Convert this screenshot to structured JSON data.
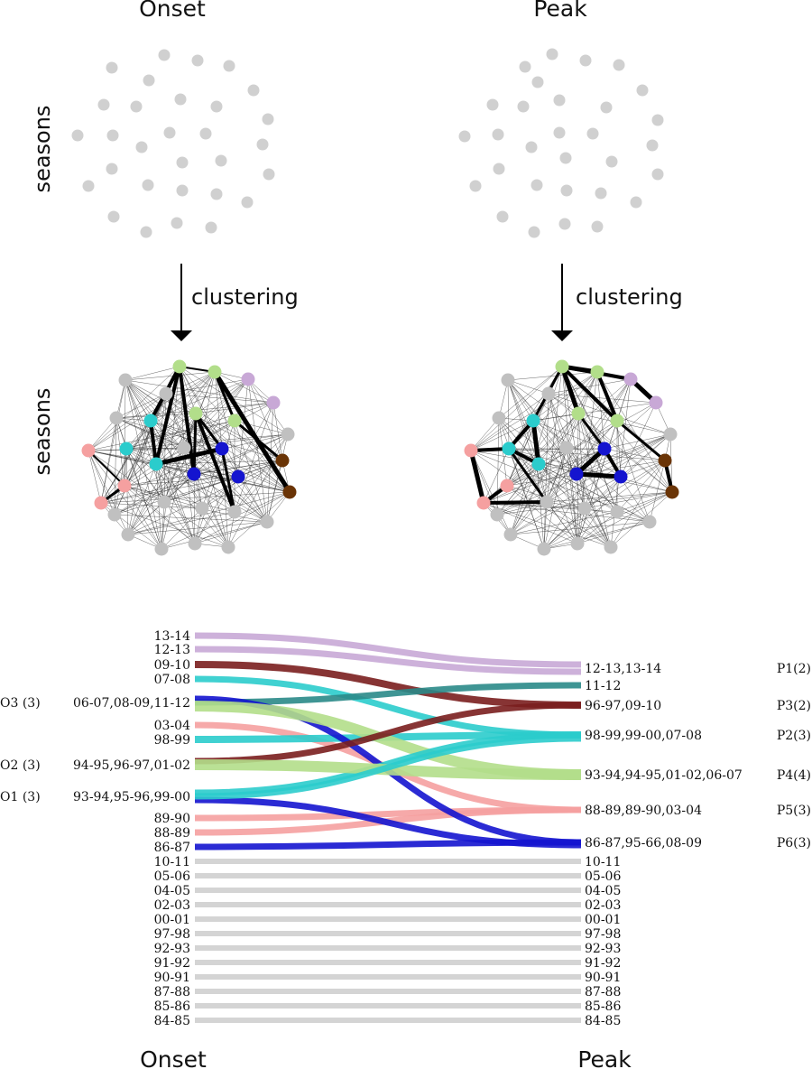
{
  "headers": {
    "onset": "Onset",
    "peak": "Peak"
  },
  "side_label": "seasons",
  "arrow_label": "clustering",
  "bottom": {
    "onset": "Onset",
    "peak": "Peak"
  },
  "colors": {
    "grey": "#cfcfcf",
    "green": "#b2de8a",
    "cyan": "#2bcccc",
    "blue": "#1414cf",
    "purple": "#c8a8d6",
    "pink": "#f5a0a0",
    "brown": "#6a3406",
    "darkred": "#7a1e1e",
    "teal": "#2a8a88",
    "node_grey": "#c0c0c0"
  },
  "flow": {
    "left_items": [
      {
        "label": "13-14",
        "color": "purple"
      },
      {
        "label": "12-13",
        "color": "purple"
      },
      {
        "label": "09-10",
        "color": "darkred"
      },
      {
        "label": "07-08",
        "color": "cyan"
      },
      {
        "label": "06-07,08-09,11-12",
        "color": "teal",
        "group": "O3 (3)"
      },
      {
        "label": "03-04",
        "color": "pink"
      },
      {
        "label": "98-99",
        "color": "cyan"
      },
      {
        "label": "94-95,96-97,01-02",
        "color": "green",
        "group": "O2 (3)"
      },
      {
        "label": "93-94,95-96,99-00",
        "color": "cyan",
        "group": "O1 (3)"
      },
      {
        "label": "89-90",
        "color": "pink"
      },
      {
        "label": "88-89",
        "color": "pink"
      },
      {
        "label": "86-87",
        "color": "blue"
      },
      {
        "label": "10-11",
        "color": "grey"
      },
      {
        "label": "05-06",
        "color": "grey"
      },
      {
        "label": "04-05",
        "color": "grey"
      },
      {
        "label": "02-03",
        "color": "grey"
      },
      {
        "label": "00-01",
        "color": "grey"
      },
      {
        "label": "97-98",
        "color": "grey"
      },
      {
        "label": "92-93",
        "color": "grey"
      },
      {
        "label": "91-92",
        "color": "grey"
      },
      {
        "label": "90-91",
        "color": "grey"
      },
      {
        "label": "87-88",
        "color": "grey"
      },
      {
        "label": "85-86",
        "color": "grey"
      },
      {
        "label": "84-85",
        "color": "grey"
      }
    ],
    "right_items": [
      {
        "label": "12-13,13-14",
        "group": "P1(2)"
      },
      {
        "label": "11-12"
      },
      {
        "label": "96-97,09-10",
        "group": "P3(2)"
      },
      {
        "label": "98-99,99-00,07-08",
        "group": "P2(3)"
      },
      {
        "label": "93-94,94-95,01-02,06-07",
        "group": "P4(4)"
      },
      {
        "label": "88-89,89-90,03-04",
        "group": "P5(3)"
      },
      {
        "label": "86-87,95-66,08-09",
        "group": "P6(3)"
      },
      {
        "label": "10-11"
      },
      {
        "label": "05-06"
      },
      {
        "label": "04-05"
      },
      {
        "label": "02-03"
      },
      {
        "label": "00-01"
      },
      {
        "label": "97-98"
      },
      {
        "label": "92-93"
      },
      {
        "label": "91-92"
      },
      {
        "label": "90-91"
      },
      {
        "label": "87-88"
      },
      {
        "label": "85-86"
      },
      {
        "label": "84-85"
      }
    ]
  }
}
